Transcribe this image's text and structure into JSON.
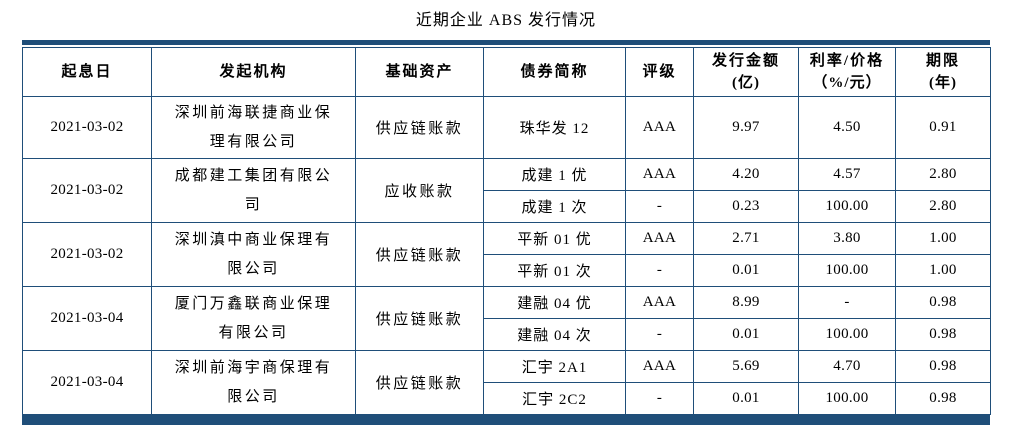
{
  "title": "近期企业 ABS 发行情况",
  "colors": {
    "accent": "#1F4E79",
    "text": "#000000",
    "background": "#FFFFFF"
  },
  "table": {
    "columns": [
      {
        "key": "value_date",
        "label": "起息日"
      },
      {
        "key": "originator",
        "label": "发起机构"
      },
      {
        "key": "underlying_asset",
        "label": "基础资产"
      },
      {
        "key": "bond_name",
        "label": "债券简称"
      },
      {
        "key": "rating",
        "label": "评级"
      },
      {
        "key": "issue_amount",
        "label": "发行金额",
        "label2": "(亿)"
      },
      {
        "key": "rate_price",
        "label": "利率/价格",
        "label2": "（%/元）"
      },
      {
        "key": "term",
        "label": "期限",
        "label2": "(年)"
      }
    ],
    "groups": [
      {
        "value_date": "2021-03-02",
        "originator": "深圳前海联捷商业保理有限公司",
        "underlying_asset": "供应链账款",
        "tranches": [
          {
            "bond_name": "珠华发 12",
            "rating": "AAA",
            "issue_amount": "9.97",
            "rate_price": "4.50",
            "term": "0.91"
          }
        ]
      },
      {
        "value_date": "2021-03-02",
        "originator": "成都建工集团有限公司",
        "underlying_asset": "应收账款",
        "tranches": [
          {
            "bond_name": "成建 1 优",
            "rating": "AAA",
            "issue_amount": "4.20",
            "rate_price": "4.57",
            "term": "2.80"
          },
          {
            "bond_name": "成建 1 次",
            "rating": "-",
            "issue_amount": "0.23",
            "rate_price": "100.00",
            "term": "2.80"
          }
        ]
      },
      {
        "value_date": "2021-03-02",
        "originator": "深圳滇中商业保理有限公司",
        "underlying_asset": "供应链账款",
        "tranches": [
          {
            "bond_name": "平新 01 优",
            "rating": "AAA",
            "issue_amount": "2.71",
            "rate_price": "3.80",
            "term": "1.00"
          },
          {
            "bond_name": "平新 01 次",
            "rating": "-",
            "issue_amount": "0.01",
            "rate_price": "100.00",
            "term": "1.00"
          }
        ]
      },
      {
        "value_date": "2021-03-04",
        "originator": "厦门万鑫联商业保理有限公司",
        "underlying_asset": "供应链账款",
        "tranches": [
          {
            "bond_name": "建融 04 优",
            "rating": "AAA",
            "issue_amount": "8.99",
            "rate_price": "-",
            "term": "0.98"
          },
          {
            "bond_name": "建融 04 次",
            "rating": "-",
            "issue_amount": "0.01",
            "rate_price": "100.00",
            "term": "0.98"
          }
        ]
      },
      {
        "value_date": "2021-03-04",
        "originator": "深圳前海宇商保理有限公司",
        "underlying_asset": "供应链账款",
        "tranches": [
          {
            "bond_name": "汇宇 2A1",
            "rating": "AAA",
            "issue_amount": "5.69",
            "rate_price": "4.70",
            "term": "0.98"
          },
          {
            "bond_name": "汇宇 2C2",
            "rating": "-",
            "issue_amount": "0.01",
            "rate_price": "100.00",
            "term": "0.98"
          }
        ]
      }
    ]
  }
}
